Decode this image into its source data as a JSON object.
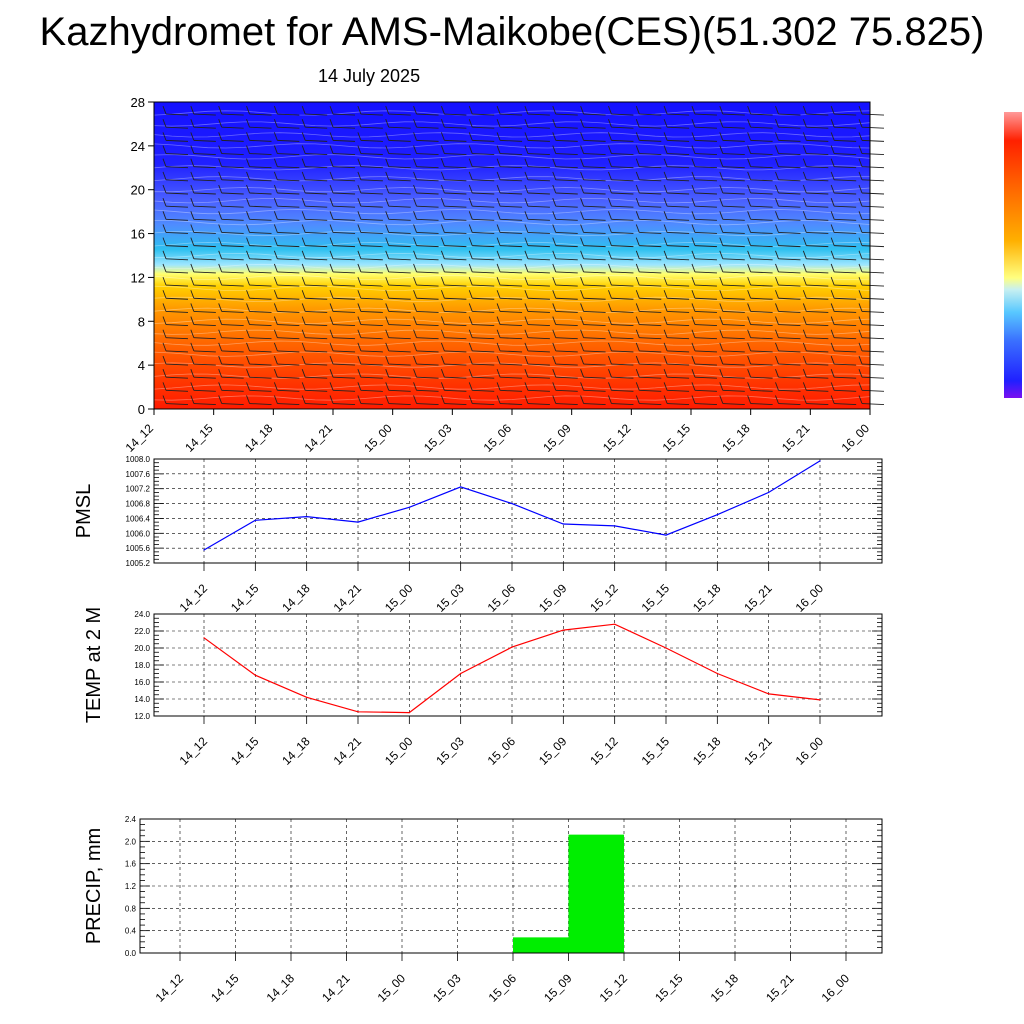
{
  "header": {
    "title": "Kazhydromet for AMS-Maikobe(CES)(51.302 75.825)",
    "subtitle": "14 July 2025"
  },
  "time_labels": [
    "14_12",
    "14_15",
    "14_18",
    "14_21",
    "15_00",
    "15_03",
    "15_06",
    "15_09",
    "15_12",
    "15_15",
    "15_18",
    "15_21",
    "16_00"
  ],
  "colors": {
    "pmsl_line": "#0000ff",
    "temp_line": "#ff0000",
    "precip_bar": "#00ee00"
  },
  "chart_data": [
    {
      "type": "heatmap",
      "yticks": [
        "0",
        "4",
        "8",
        "12",
        "16",
        "20",
        "24",
        "28"
      ],
      "ylim": [
        0,
        28
      ],
      "xlim": [
        "14_12",
        "16_00"
      ],
      "colormap": "blue-cyan-yellow-orange-red",
      "overlay": "wind barbs"
    },
    {
      "type": "line",
      "ylabel": "PMSL",
      "ylim": [
        1005.2,
        1008.0
      ],
      "yticks": [
        "1005.2",
        "1005.6",
        "1006.0",
        "1006.4",
        "1006.8",
        "1007.2",
        "1007.6",
        "1008.0"
      ],
      "values": [
        1005.55,
        1006.35,
        1006.45,
        1006.3,
        1006.7,
        1007.25,
        1006.8,
        1006.25,
        1006.2,
        1005.95,
        1006.5,
        1007.1,
        1007.95
      ],
      "grid": true
    },
    {
      "type": "line",
      "ylabel": "TEMP at 2 M",
      "ylim": [
        12.0,
        24.0
      ],
      "yticks": [
        "12.0",
        "14.0",
        "16.0",
        "18.0",
        "20.0",
        "22.0",
        "24.0"
      ],
      "values": [
        21.2,
        16.8,
        14.2,
        12.5,
        12.4,
        17.0,
        20.1,
        22.1,
        22.8,
        20.0,
        17.0,
        14.6,
        13.9
      ],
      "grid": true
    },
    {
      "type": "bar",
      "ylabel": "PRECIP, mm",
      "ylim": [
        0.0,
        2.4
      ],
      "yticks": [
        "0.0",
        "0.4",
        "0.8",
        "1.2",
        "1.6",
        "2.0",
        "2.4"
      ],
      "values": [
        0,
        0,
        0,
        0,
        0,
        0,
        0,
        0.28,
        2.12,
        0,
        0,
        0,
        0
      ],
      "grid": true
    }
  ]
}
